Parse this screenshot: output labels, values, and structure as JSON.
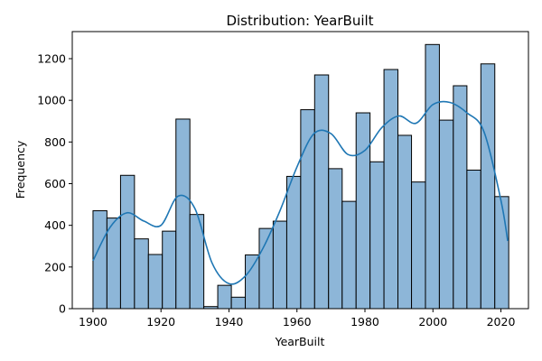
{
  "chart_data": {
    "type": "bar",
    "title": "Distribution: YearBuilt",
    "xlabel": "YearBuilt",
    "ylabel": "Frequency",
    "xlim": [
      1893.9,
      2028.1
    ],
    "ylim": [
      0,
      1330
    ],
    "xticks": [
      1900,
      1920,
      1940,
      1960,
      1980,
      2000,
      2020
    ],
    "yticks": [
      0,
      200,
      400,
      600,
      800,
      1000,
      1200
    ],
    "bins": [
      {
        "start": 1900.0,
        "end": 1904.1,
        "value": 470
      },
      {
        "start": 1904.1,
        "end": 1908.1,
        "value": 435
      },
      {
        "start": 1908.1,
        "end": 1912.2,
        "value": 640
      },
      {
        "start": 1912.2,
        "end": 1916.3,
        "value": 335
      },
      {
        "start": 1916.3,
        "end": 1920.4,
        "value": 260
      },
      {
        "start": 1920.4,
        "end": 1924.4,
        "value": 372
      },
      {
        "start": 1924.4,
        "end": 1928.5,
        "value": 910
      },
      {
        "start": 1928.5,
        "end": 1932.6,
        "value": 452
      },
      {
        "start": 1932.6,
        "end": 1936.7,
        "value": 10
      },
      {
        "start": 1936.7,
        "end": 1940.7,
        "value": 112
      },
      {
        "start": 1940.7,
        "end": 1944.8,
        "value": 55
      },
      {
        "start": 1944.8,
        "end": 1948.9,
        "value": 258
      },
      {
        "start": 1948.9,
        "end": 1953.0,
        "value": 385
      },
      {
        "start": 1953.0,
        "end": 1957.0,
        "value": 420
      },
      {
        "start": 1957.0,
        "end": 1961.1,
        "value": 635
      },
      {
        "start": 1961.1,
        "end": 1965.2,
        "value": 955
      },
      {
        "start": 1965.2,
        "end": 1969.3,
        "value": 1122
      },
      {
        "start": 1969.3,
        "end": 1973.3,
        "value": 672
      },
      {
        "start": 1973.3,
        "end": 1977.4,
        "value": 515
      },
      {
        "start": 1977.4,
        "end": 1981.5,
        "value": 940
      },
      {
        "start": 1981.5,
        "end": 1985.6,
        "value": 705
      },
      {
        "start": 1985.6,
        "end": 1989.7,
        "value": 1148
      },
      {
        "start": 1989.7,
        "end": 1993.7,
        "value": 832
      },
      {
        "start": 1993.7,
        "end": 1997.8,
        "value": 608
      },
      {
        "start": 1997.8,
        "end": 2001.9,
        "value": 1268
      },
      {
        "start": 2001.9,
        "end": 2006.0,
        "value": 905
      },
      {
        "start": 2006.0,
        "end": 2010.0,
        "value": 1070
      },
      {
        "start": 2010.0,
        "end": 2014.1,
        "value": 665
      },
      {
        "start": 2014.1,
        "end": 2018.2,
        "value": 1175
      },
      {
        "start": 2018.2,
        "end": 2022.3,
        "value": 538
      }
    ],
    "kde": {
      "x": [
        1900,
        1905,
        1910,
        1915,
        1920,
        1925,
        1930,
        1935,
        1940,
        1945,
        1950,
        1955,
        1960,
        1965,
        1970,
        1975,
        1980,
        1985,
        1990,
        1995,
        2000,
        2005,
        2010,
        2015,
        2020,
        2022
      ],
      "y": [
        230,
        390,
        460,
        420,
        400,
        540,
        480,
        220,
        120,
        160,
        290,
        470,
        680,
        840,
        840,
        740,
        760,
        870,
        925,
        890,
        980,
        990,
        940,
        850,
        520,
        325
      ]
    },
    "colors": {
      "bar": "#8db6d8",
      "kde": "#1f77b4"
    },
    "grid": false
  }
}
